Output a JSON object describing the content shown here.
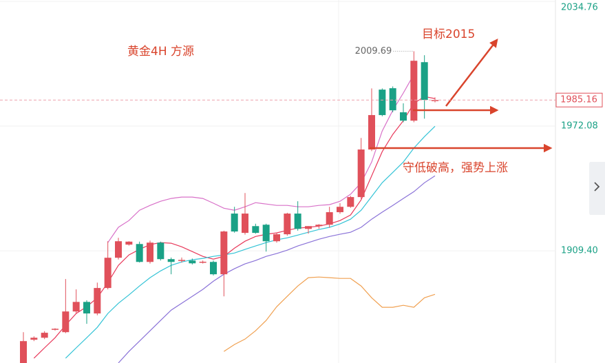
{
  "chart_data": {
    "type": "candlestick",
    "title": "黄金4H  方源",
    "annotations": [
      "目标2015",
      "守低破高，强势上涨"
    ],
    "high_label": 2009.69,
    "last_price": 1985.16,
    "ylim": [
      1853.0,
      2035.44
    ],
    "yticks": [
      {
        "value": 1909.4,
        "label": "1909.40"
      },
      1972.08,
      2034.76
    ],
    "up_color": "#e0505a",
    "down_color": "#1aa186",
    "open": [
      1853.0,
      1864.7,
      1865.7,
      1869.9,
      1868.5,
      1878.9,
      1883.7,
      1877.9,
      1890.7,
      1905.9,
      1912.5,
      1912.8,
      1903.8,
      1913.5,
      1905.2,
      1904.5,
      1904.5,
      1903.8,
      1903.8,
      1897.6,
      1928.1,
      1918.4,
      1921.8,
      1922.5,
      1914.2,
      1917.7,
      1928.1,
      1920.4,
      1921.8,
      1922.5,
      1928.8,
      1931.5,
      1936.4,
      1960.3,
      1990.4,
      1991.1,
      1979.0,
      1974.8,
      2004.2,
      1984.8
    ],
    "high": [
      1868.5,
      1866.4,
      1869.0,
      1870.5,
      1895.2,
      1890.0,
      1884.5,
      1893.4,
      1914.2,
      1915.9,
      1914.2,
      1914.0,
      1914.5,
      1914.0,
      1906.0,
      1906.0,
      1905.5,
      1904.5,
      1904.5,
      1919.5,
      1931.5,
      1938.4,
      1923.0,
      1923.0,
      1918.4,
      1928.5,
      1934.3,
      1921.8,
      1922.8,
      1931.5,
      1933.3,
      1937.0,
      1966.1,
      1991.0,
      1991.0,
      1992.0,
      1983.5,
      2009.69,
      2007.7,
      1986.5
    ],
    "low": [
      1853.0,
      1864.0,
      1865.0,
      1869.3,
      1868.0,
      1878.0,
      1872.7,
      1877.0,
      1890.0,
      1905.0,
      1912.0,
      1903.5,
      1903.0,
      1904.5,
      1897.6,
      1903.5,
      1902.5,
      1903.0,
      1897.0,
      1886.5,
      1918.5,
      1917.5,
      1918.0,
      1909.0,
      1913.5,
      1917.0,
      1919.5,
      1918.0,
      1920.5,
      1921.0,
      1928.0,
      1931.0,
      1935.5,
      1959.5,
      1977.0,
      1979.0,
      1974.0,
      1974.0,
      1975.8,
      1984.0
    ],
    "close": [
      1864.0,
      1865.7,
      1868.2,
      1870.2,
      1878.9,
      1883.7,
      1877.9,
      1890.7,
      1905.9,
      1914.2,
      1914.0,
      1903.8,
      1913.5,
      1905.2,
      1903.8,
      1904.8,
      1903.1,
      1903.9,
      1897.6,
      1919.1,
      1919.1,
      1928.1,
      1918.4,
      1914.2,
      1917.7,
      1928.1,
      1920.4,
      1921.8,
      1922.5,
      1928.8,
      1931.5,
      1936.4,
      1960.3,
      1977.6,
      1977.6,
      1980.0,
      1974.8,
      2004.9,
      1985.2,
      1985.16
    ],
    "series": [
      {
        "color": "#e8385a",
        "values": [
          null,
          1855.4,
          1860.6,
          1865.7,
          1872.0,
          1877.9,
          1881.3,
          1885.8,
          1893.4,
          1902.1,
          1907.3,
          1910.1,
          1912.5,
          1913.5,
          1913.2,
          1911.4,
          1909.0,
          1906.6,
          1905.2,
          1906.6,
          1910.7,
          1914.2,
          1916.6,
          1917.7,
          1918.4,
          1919.7,
          1920.8,
          1921.2,
          1921.8,
          1922.9,
          1924.6,
          1927.4,
          1935.0,
          1947.1,
          1959.2,
          1967.9,
          1974.8,
          1983.5,
          1986.9,
          1985.9
        ]
      },
      {
        "color": "#d870c8",
        "values": [
          null,
          null,
          null,
          null,
          null,
          null,
          null,
          null,
          1913.5,
          1921.2,
          1924.6,
          1929.8,
          1932.2,
          1934.3,
          1935.7,
          1936.4,
          1936.4,
          1935.7,
          1933.3,
          1930.8,
          1929.8,
          1931.5,
          1933.6,
          1932.9,
          1932.2,
          1932.2,
          1931.5,
          1931.5,
          1932.2,
          1932.6,
          1934.3,
          1937.8,
          1943.6,
          1954.0,
          1969.6,
          1980.0,
          1988.7,
          1998.0,
          null,
          null
        ]
      },
      {
        "color": "#33c3d6",
        "values": [
          null,
          null,
          null,
          null,
          1855.4,
          1860.6,
          1865.7,
          1870.9,
          1877.9,
          1883.0,
          1887.2,
          1891.7,
          1895.9,
          1899.3,
          1902.1,
          1903.8,
          1904.9,
          1905.6,
          1906.6,
          1907.3,
          1908.3,
          1910.1,
          1911.8,
          1913.5,
          1914.9,
          1915.9,
          1917.3,
          1918.7,
          1920.1,
          1921.2,
          1922.9,
          1925.3,
          1929.8,
          1936.7,
          1943.6,
          1948.8,
          1954.0,
          1961.0,
          1966.8,
          1972.0
        ]
      },
      {
        "color": "#8a72d8",
        "values": [
          null,
          null,
          null,
          null,
          null,
          null,
          null,
          null,
          null,
          1853.0,
          1858.8,
          1864.0,
          1869.2,
          1874.4,
          1879.6,
          1883.0,
          1886.5,
          1890.0,
          1894.1,
          1897.6,
          1900.4,
          1902.8,
          1904.5,
          1906.6,
          1908.0,
          1909.7,
          1911.8,
          1913.5,
          1915.2,
          1916.6,
          1917.7,
          1918.7,
          1921.2,
          1925.3,
          1928.8,
          1932.2,
          1935.7,
          1939.1,
          1943.6,
          1947.1
        ]
      },
      {
        "color": "#f0a050",
        "values": [
          null,
          null,
          null,
          null,
          null,
          null,
          null,
          null,
          null,
          null,
          null,
          null,
          null,
          null,
          null,
          null,
          null,
          null,
          null,
          1858.8,
          1862.3,
          1865.0,
          1869.2,
          1874.4,
          1881.3,
          1886.5,
          1891.7,
          1895.9,
          1896.2,
          1895.9,
          1895.5,
          1895.5,
          1891.7,
          1885.8,
          1881.0,
          1881.0,
          1882.0,
          1881.0,
          1885.8,
          1887.5
        ]
      }
    ]
  }
}
